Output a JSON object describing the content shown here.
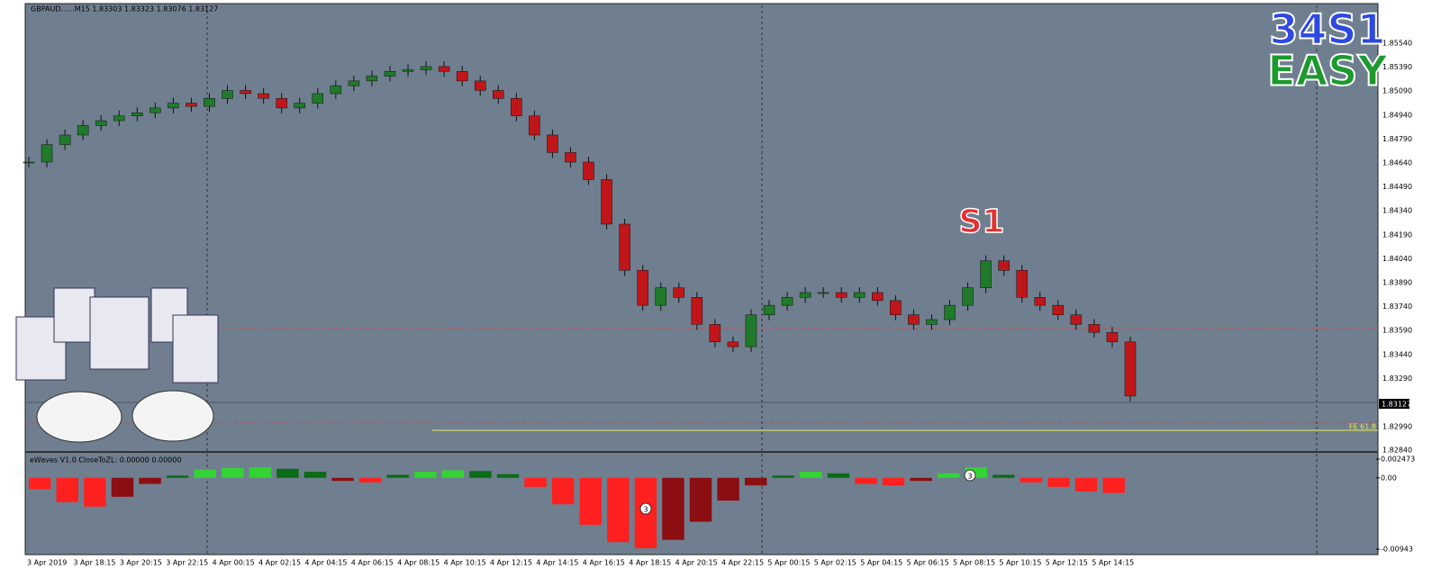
{
  "window": {
    "symbol_info": "GBPAUD......M15  1.83303 1.83323 1.83076 1.83127",
    "logo_line1": "34S1",
    "logo_line2": "EASY",
    "signal_label": "S1",
    "fe_label": "FE 61.8",
    "current_price": "1.83127",
    "price_axis": [
      "1.85540",
      "1.85390",
      "1.85090",
      "1.84940",
      "1.84790",
      "1.84640",
      "1.84490",
      "1.84340",
      "1.84190",
      "1.84040",
      "1.83890",
      "1.83740",
      "1.83590",
      "1.83440",
      "1.83290"
    ],
    "price_axis_bottom": [
      "1.82990",
      "1.82840"
    ],
    "time_axis": [
      "3 Apr 2019",
      "3 Apr 18:15",
      "3 Apr 20:15",
      "3 Apr 22:15",
      "4 Apr 00:15",
      "4 Apr 02:15",
      "4 Apr 04:15",
      "4 Apr 06:15",
      "4 Apr 08:15",
      "4 Apr 10:15",
      "4 Apr 12:15",
      "4 Apr 14:15",
      "4 Apr 16:15",
      "4 Apr 18:15",
      "4 Apr 20:15",
      "4 Apr 22:15",
      "5 Apr 00:15",
      "5 Apr 02:15",
      "5 Apr 04:15",
      "5 Apr 06:15",
      "5 Apr 08:15",
      "5 Apr 10:15",
      "5 Apr 12:15",
      "5 Apr 14:15"
    ],
    "price_chart": {
      "ylim": [
        1.8284,
        1.8564
      ],
      "close": [
        1.8465,
        1.8476,
        1.8482,
        1.8488,
        1.8491,
        1.8494,
        1.8496,
        1.8499,
        1.8502,
        1.85,
        1.8505,
        1.851,
        1.8508,
        1.8505,
        1.8499,
        1.8502,
        1.8508,
        1.8513,
        1.8516,
        1.8519,
        1.8522,
        1.8523,
        1.8525,
        1.8522,
        1.8516,
        1.851,
        1.8505,
        1.8494,
        1.8482,
        1.8471,
        1.8465,
        1.8454,
        1.8426,
        1.8397,
        1.8375,
        1.8386,
        1.838,
        1.8363,
        1.8352,
        1.8349,
        1.8369,
        1.8375,
        1.838,
        1.8383,
        1.8383,
        1.838,
        1.8383,
        1.8378,
        1.8369,
        1.8363,
        1.8366,
        1.8375,
        1.8386,
        1.8403,
        1.8397,
        1.838,
        1.8375,
        1.8369,
        1.8363,
        1.8358,
        1.8352,
        1.8318
      ]
    },
    "indicator": {
      "label": "eWaves V1.0 CloseToZL: 0.00000 0.00000",
      "ylim": [
        -0.00943,
        0.002473
      ],
      "yticks": [
        {
          "value": 0.002473,
          "label": "0.002473"
        },
        {
          "value": 0,
          "label": "0.00"
        },
        {
          "value": -0.00943,
          "label": "-0.00943"
        }
      ],
      "values": [
        -0.0015,
        -0.0032,
        -0.0038,
        -0.0025,
        -0.0008,
        0.0003,
        0.0011,
        0.0013,
        0.0014,
        0.0012,
        0.0008,
        -0.0004,
        -0.0006,
        0.0004,
        0.0008,
        0.001,
        0.0009,
        0.0005,
        -0.0012,
        -0.0035,
        -0.0062,
        -0.0085,
        -0.0093,
        -0.0082,
        -0.0058,
        -0.003,
        -0.001,
        0.0003,
        0.0008,
        0.0006,
        -0.0008,
        -0.001,
        -0.0004,
        0.0006,
        0.0014,
        0.0004,
        -0.0006,
        -0.0012,
        -0.0018,
        -0.002
      ],
      "wave_labels": [
        "3",
        "3"
      ]
    }
  }
}
